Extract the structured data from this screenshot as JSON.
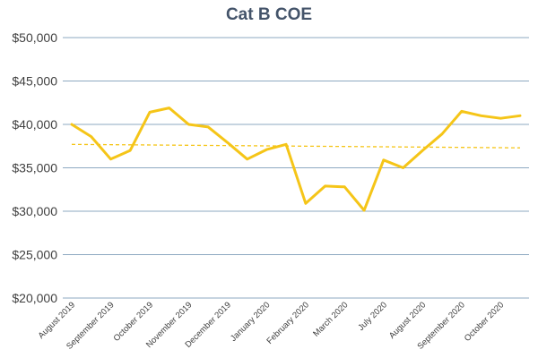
{
  "chart_data": {
    "type": "line",
    "title": "Cat B COE",
    "xlabel": "",
    "ylabel": "",
    "ylim": [
      20000,
      50000
    ],
    "yticks": [
      20000,
      25000,
      30000,
      35000,
      40000,
      45000,
      50000
    ],
    "ytick_labels": [
      "$20,000",
      "$25,000",
      "$30,000",
      "$35,000",
      "$40,000",
      "$45,000",
      "$50,000"
    ],
    "grid": true,
    "x_tick_labels": [
      "August 2019",
      "September 2019",
      "October 2019",
      "November 2019",
      "December 2019",
      "January 2020",
      "February 2020",
      "March 2020",
      "July 2020",
      "August 2020",
      "September 2020",
      "October 2020"
    ],
    "x_tick_positions": [
      0,
      2,
      4,
      6,
      8,
      10,
      12,
      14,
      16,
      18,
      20,
      22
    ],
    "series": [
      {
        "color": "#f5c518",
        "values": [
          40000,
          38600,
          36000,
          37000,
          41400,
          41900,
          40000,
          39700,
          37900,
          36000,
          37100,
          37700,
          30900,
          32900,
          32800,
          30100,
          35900,
          35000,
          37000,
          38900,
          41500,
          41000,
          40700,
          41000
        ]
      }
    ],
    "trendline": {
      "style": "dashed",
      "color": "#f5c518",
      "start": 37700,
      "end": 37300
    }
  }
}
